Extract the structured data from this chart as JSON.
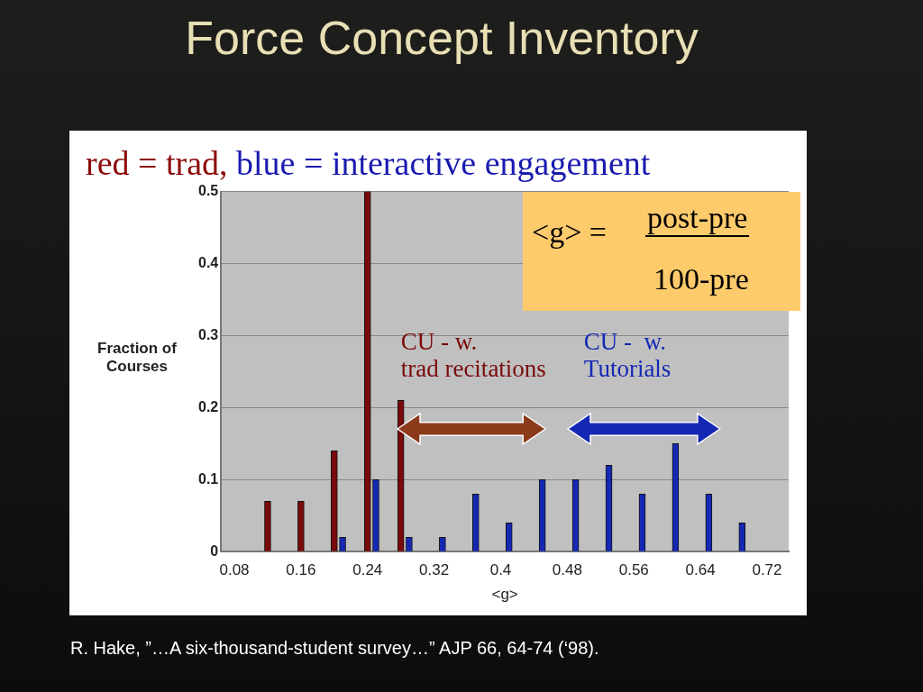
{
  "chart_data": {
    "type": "bar",
    "title": "Force Concept Inventory",
    "subtitle": "red = trad, blue = interactive engagement",
    "xlabel": "<g>",
    "ylabel": "Fraction of Courses",
    "series": [
      {
        "color": "#7a0a0a",
        "x": [
          0.12,
          0.16,
          0.2,
          0.24,
          0.28
        ],
        "values": [
          0.07,
          0.07,
          0.14,
          0.5,
          0.21
        ]
      },
      {
        "color": "#1428b4",
        "x": [
          0.21,
          0.25,
          0.29,
          0.33,
          0.37,
          0.41,
          0.45,
          0.49,
          0.53,
          0.57,
          0.61,
          0.65,
          0.69
        ],
        "values": [
          0.02,
          0.1,
          0.02,
          0.02,
          0.08,
          0.04,
          0.1,
          0.1,
          0.12,
          0.08,
          0.15,
          0.08,
          0.04
        ]
      }
    ],
    "xlim": [
      0.064,
      0.746
    ],
    "xticks": [
      0.08,
      0.16,
      0.24,
      0.32,
      {
        "value": 0.4,
        "label": "0.4"
      },
      0.48,
      0.56,
      0.64,
      0.72
    ],
    "ylim": [
      0,
      0.5
    ],
    "yticks": [
      0,
      0.1,
      0.2,
      0.3,
      0.4,
      0.5
    ],
    "grid": "y",
    "legend": false,
    "annotations": [
      "CU - w. trad recitations",
      "CU -  w. Tutorials",
      "<g> =",
      "post-pre",
      "100-pre",
      "R. Hake, ”…A six-thousand-student survey…” AJP 66, 64-74 (‘98)."
    ]
  }
}
